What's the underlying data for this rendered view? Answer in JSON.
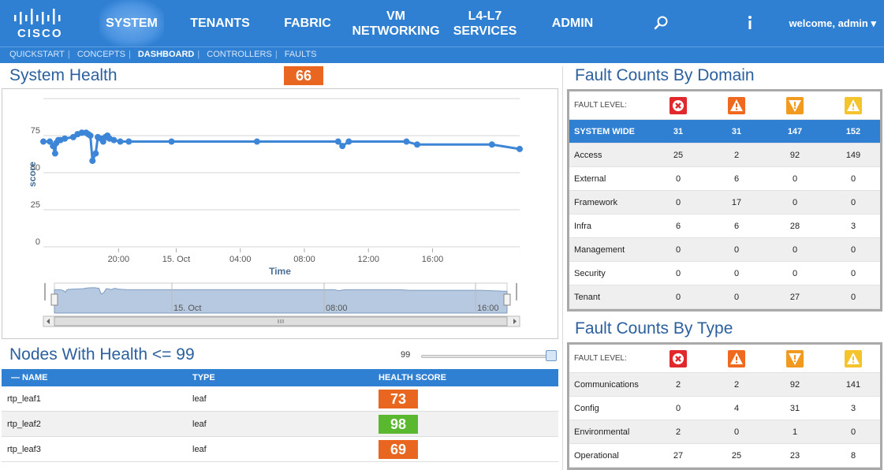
{
  "nav": {
    "logo": "CISCO",
    "items": [
      {
        "label": "SYSTEM",
        "active": true
      },
      {
        "label": "TENANTS"
      },
      {
        "label": "FABRIC"
      },
      {
        "label": "VM\nNETWORKING"
      },
      {
        "label": "L4-L7\nSERVICES"
      },
      {
        "label": "ADMIN"
      }
    ],
    "icons": [
      "search-icon",
      "info-icon"
    ],
    "welcome": "welcome, admin ▾"
  },
  "subnav": {
    "items": [
      "QUICKSTART",
      "CONCEPTS",
      "DASHBOARD",
      "CONTROLLERS",
      "FAULTS"
    ],
    "current": "DASHBOARD"
  },
  "system_health": {
    "title": "System Health",
    "score": "66"
  },
  "chart_data": {
    "type": "line",
    "ylabel": "score",
    "xlabel": "Time",
    "y_ticks": [
      "0",
      "25",
      "50",
      "75"
    ],
    "x_ticks": [
      "20:00",
      "15. Oct",
      "04:00",
      "08:00",
      "12:00",
      "16:00"
    ],
    "ylim": [
      0,
      100
    ],
    "navigator_ticks": [
      "15. Oct",
      "08:00",
      "16:00"
    ],
    "color": "#3d85d6",
    "series": [
      {
        "x": [
          0,
          0.3,
          0.45,
          0.55,
          0.6,
          0.7,
          0.8,
          1.0,
          1.4,
          1.6,
          1.8,
          2.0,
          2.1,
          2.2,
          2.3,
          2.45,
          2.55,
          2.7,
          2.8,
          2.9,
          3.0,
          3.1,
          3.3,
          3.6,
          4.0,
          6.0,
          10.0,
          13.8,
          14.0,
          14.3,
          17.0,
          17.5,
          21.0,
          22.3
        ],
        "y": [
          71,
          71,
          68,
          63,
          70,
          72,
          72,
          73,
          74,
          76,
          77,
          77,
          76,
          75,
          58,
          63,
          74,
          73,
          71,
          74,
          75,
          73,
          72,
          71,
          71,
          71,
          71,
          71,
          68,
          71,
          71,
          69,
          69,
          66
        ]
      }
    ]
  },
  "nodes": {
    "title": "Nodes With Health <= 99",
    "slider_value": "99",
    "slider_level": 99,
    "columns": [
      "— NAME",
      "TYPE",
      "HEALTH SCORE"
    ],
    "rows": [
      {
        "name": "rtp_leaf1",
        "type": "leaf",
        "score": "73",
        "color": "#e8661f"
      },
      {
        "name": "rtp_leaf2",
        "type": "leaf",
        "score": "98",
        "color": "#5ab82f"
      },
      {
        "name": "rtp_leaf3",
        "type": "leaf",
        "score": "69",
        "color": "#e8661f"
      }
    ]
  },
  "fault_domain": {
    "title": "Fault Counts By Domain",
    "level_label": "FAULT LEVEL:",
    "severity_icons": [
      "critical-icon",
      "major-icon",
      "minor-icon",
      "warning-icon"
    ],
    "severity_colors": [
      "#e0282d",
      "#ef6a1e",
      "#f29a1f",
      "#f5c42b"
    ],
    "system_wide": {
      "label": "SYSTEM WIDE",
      "values": [
        "31",
        "31",
        "147",
        "152"
      ]
    },
    "rows": [
      {
        "label": "Access",
        "values": [
          "25",
          "2",
          "92",
          "149"
        ]
      },
      {
        "label": "External",
        "values": [
          "0",
          "6",
          "0",
          "0"
        ]
      },
      {
        "label": "Framework",
        "values": [
          "0",
          "17",
          "0",
          "0"
        ]
      },
      {
        "label": "Infra",
        "values": [
          "6",
          "6",
          "28",
          "3"
        ]
      },
      {
        "label": "Management",
        "values": [
          "0",
          "0",
          "0",
          "0"
        ]
      },
      {
        "label": "Security",
        "values": [
          "0",
          "0",
          "0",
          "0"
        ]
      },
      {
        "label": "Tenant",
        "values": [
          "0",
          "0",
          "27",
          "0"
        ]
      }
    ]
  },
  "fault_type": {
    "title": "Fault Counts By Type",
    "level_label": "FAULT LEVEL:",
    "rows": [
      {
        "label": "Communications",
        "values": [
          "2",
          "2",
          "92",
          "141"
        ]
      },
      {
        "label": "Config",
        "values": [
          "0",
          "4",
          "31",
          "3"
        ]
      },
      {
        "label": "Environmental",
        "values": [
          "2",
          "0",
          "1",
          "0"
        ]
      },
      {
        "label": "Operational",
        "values": [
          "27",
          "25",
          "23",
          "8"
        ]
      }
    ]
  }
}
